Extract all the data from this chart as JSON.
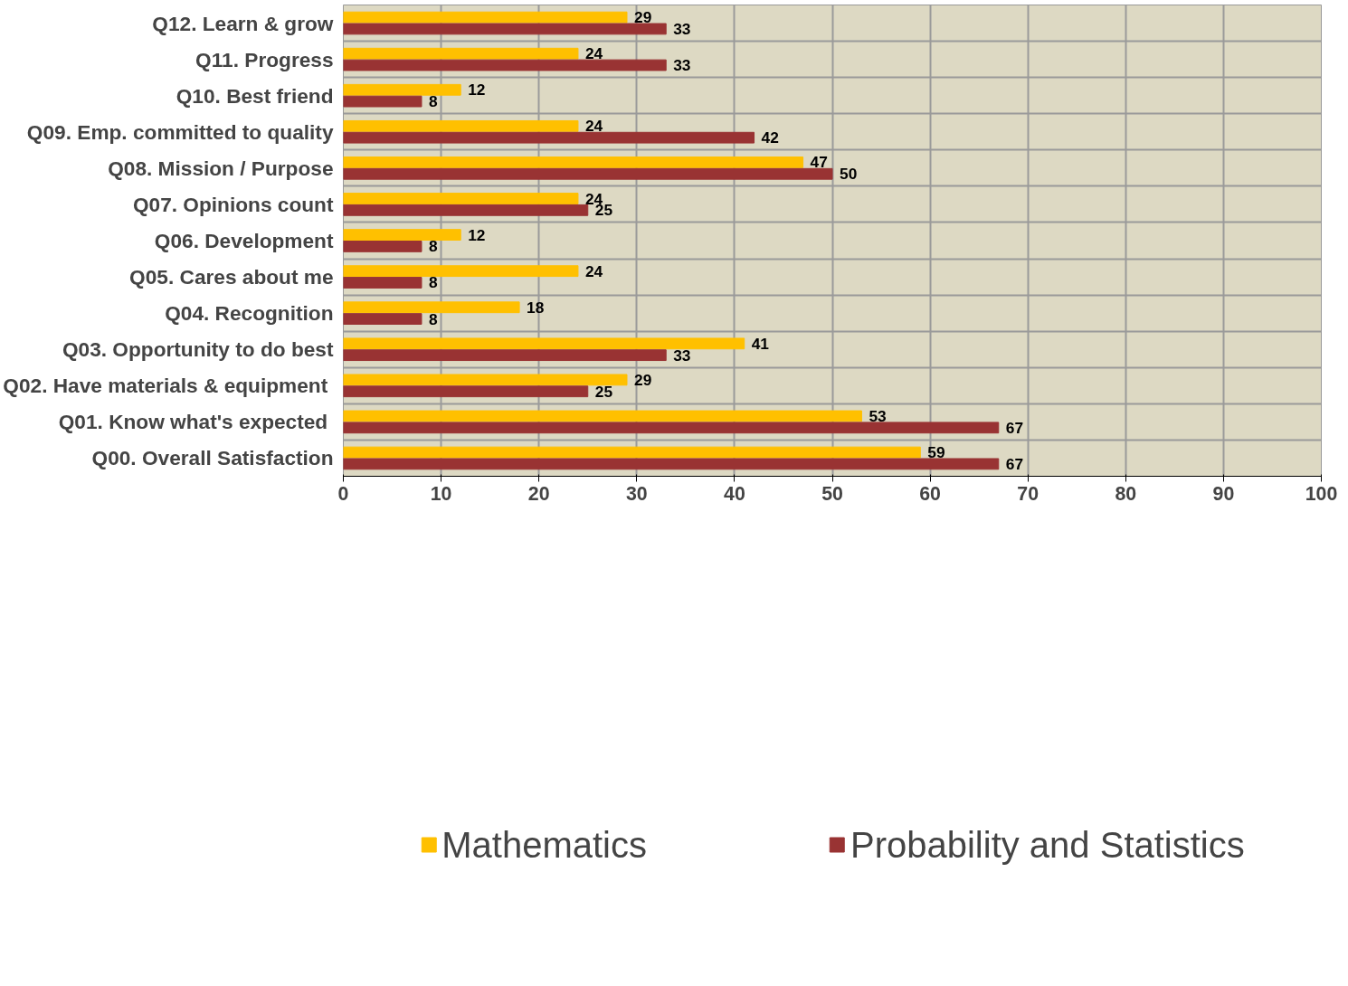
{
  "chart_data": {
    "type": "bar",
    "orientation": "horizontal",
    "categories": [
      "Q12. Learn & grow",
      "Q11. Progress",
      "Q10. Best friend",
      "Q09. Emp. committed to quality",
      "Q08. Mission / Purpose",
      "Q07. Opinions count",
      "Q06. Development",
      "Q05. Cares about me",
      "Q04. Recognition",
      "Q03. Opportunity to do best",
      "Q02. Have materials  & equipment",
      "Q01.  Know what's expected",
      "Q00. Overall Satisfaction"
    ],
    "series": [
      {
        "name": "Mathematics",
        "color": "#ffc000",
        "values": [
          29,
          24,
          12,
          24,
          47,
          24,
          12,
          24,
          18,
          41,
          29,
          53,
          59
        ]
      },
      {
        "name": "Probability and Statistics",
        "color": "#993333",
        "values": [
          33,
          33,
          8,
          42,
          50,
          25,
          8,
          8,
          8,
          33,
          25,
          67,
          67
        ]
      }
    ],
    "xlim": [
      0,
      100
    ],
    "xticks": [
      0,
      10,
      20,
      30,
      40,
      50,
      60,
      70,
      80,
      90,
      100
    ],
    "grid": true,
    "legend": "bottom",
    "data_labels": true
  }
}
